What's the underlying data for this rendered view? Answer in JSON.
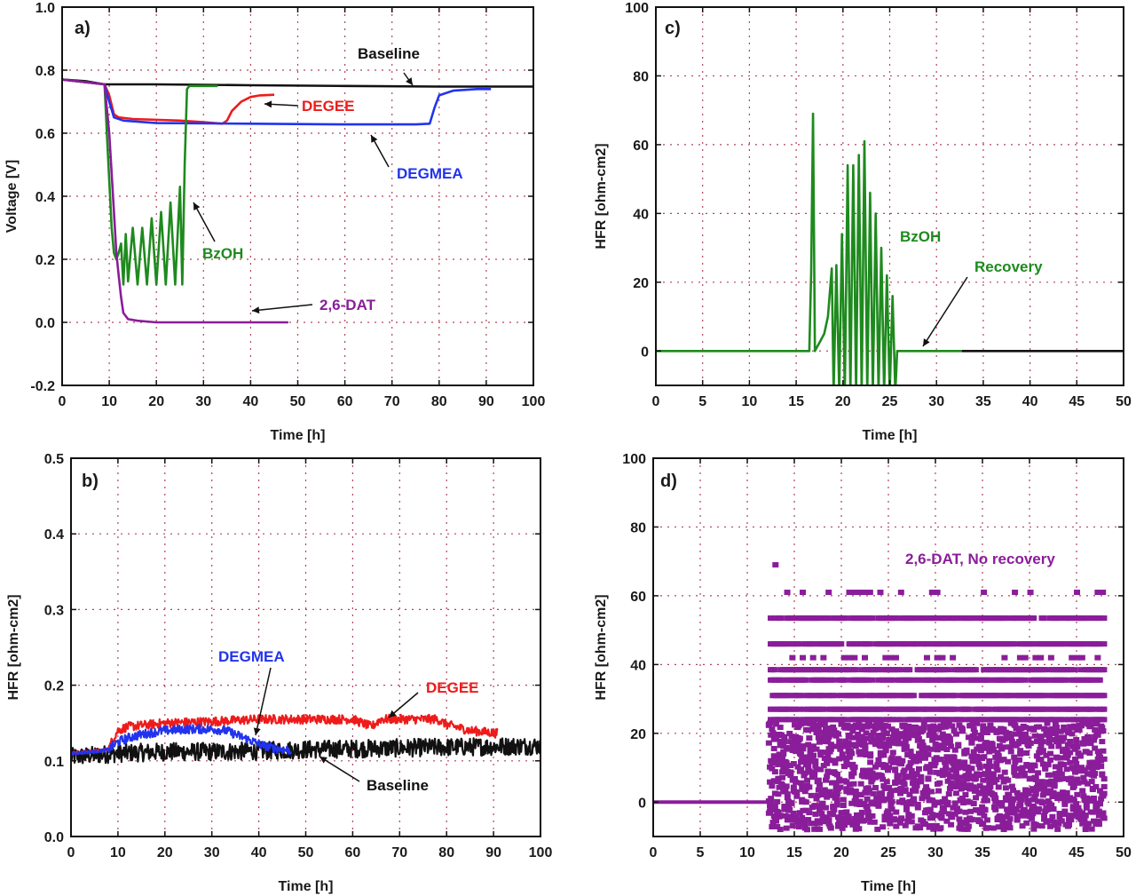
{
  "colors": {
    "baseline": "#111111",
    "degee": "#ee1b1b",
    "degmea": "#2233ee",
    "bzoh": "#1e8a1e",
    "dat": "#8a1d9a",
    "grid": "#b0445a"
  },
  "chart_data": [
    {
      "type": "line",
      "panel_label": "a)",
      "xlabel": "Time [h]",
      "ylabel": "Voltage [V]",
      "xlim": [
        0,
        100
      ],
      "ylim": [
        -0.2,
        1.0
      ],
      "xticks": [
        "0",
        "10",
        "20",
        "30",
        "40",
        "50",
        "60",
        "70",
        "80",
        "90",
        "100"
      ],
      "yticks": [
        "-0.2",
        "0.0",
        "0.2",
        "0.4",
        "0.6",
        "0.8",
        "1.0"
      ],
      "grid": true,
      "series": [
        {
          "name": "Baseline",
          "color_key": "baseline",
          "x": [
            0,
            5,
            9,
            20,
            40,
            60,
            80,
            100
          ],
          "y": [
            0.77,
            0.765,
            0.755,
            0.755,
            0.752,
            0.75,
            0.748,
            0.748
          ]
        },
        {
          "name": "DEGEE",
          "color_key": "degee",
          "x": [
            0,
            9,
            10,
            11,
            12,
            15,
            25,
            30,
            34,
            35,
            36,
            38,
            40,
            42,
            45
          ],
          "y": [
            0.77,
            0.755,
            0.72,
            0.66,
            0.65,
            0.645,
            0.64,
            0.635,
            0.63,
            0.64,
            0.67,
            0.7,
            0.715,
            0.72,
            0.722
          ]
        },
        {
          "name": "DEGMEA",
          "color_key": "degmea",
          "x": [
            0,
            9,
            10,
            11,
            13,
            20,
            40,
            60,
            75,
            78,
            79,
            80,
            83,
            88,
            91
          ],
          "y": [
            0.77,
            0.755,
            0.7,
            0.65,
            0.64,
            0.632,
            0.63,
            0.628,
            0.628,
            0.63,
            0.68,
            0.72,
            0.735,
            0.74,
            0.74
          ]
        },
        {
          "name": "BzOH",
          "color_key": "bzoh",
          "x": [
            0,
            9,
            9.5,
            10,
            10.5,
            11,
            11.5,
            12,
            12.5,
            13,
            13.5,
            14,
            15,
            16,
            17,
            18,
            19,
            20,
            21,
            22,
            23,
            24,
            25,
            25.5,
            26,
            26.5,
            27,
            28,
            30,
            33
          ],
          "y": [
            0.77,
            0.755,
            0.6,
            0.45,
            0.3,
            0.22,
            0.2,
            0.22,
            0.25,
            0.12,
            0.28,
            0.13,
            0.3,
            0.12,
            0.3,
            0.12,
            0.33,
            0.12,
            0.35,
            0.12,
            0.38,
            0.12,
            0.43,
            0.12,
            0.5,
            0.74,
            0.75,
            0.75,
            0.75,
            0.75
          ]
        },
        {
          "name": "2,6-DAT",
          "color_key": "dat",
          "x": [
            0,
            9,
            10,
            11,
            11.5,
            12,
            12.5,
            13,
            14,
            16,
            20,
            30,
            40,
            48
          ],
          "y": [
            0.77,
            0.755,
            0.6,
            0.35,
            0.22,
            0.15,
            0.08,
            0.03,
            0.01,
            0.005,
            0.0,
            0.0,
            0.0,
            0.0
          ]
        }
      ],
      "annotations": [
        {
          "text": "Baseline",
          "color_key": "baseline"
        },
        {
          "text": "DEGEE",
          "color_key": "degee"
        },
        {
          "text": "DEGMEA",
          "color_key": "degmea"
        },
        {
          "text": "BzOH",
          "color_key": "bzoh"
        },
        {
          "text": "2,6-DAT",
          "color_key": "dat"
        }
      ]
    },
    {
      "type": "line",
      "panel_label": "b)",
      "xlabel": "Time [h]",
      "ylabel": "HFR [ohm-cm2]",
      "xlim": [
        0,
        100
      ],
      "ylim": [
        0.0,
        0.5
      ],
      "xticks": [
        "0",
        "10",
        "20",
        "30",
        "40",
        "50",
        "60",
        "70",
        "80",
        "90",
        "100"
      ],
      "yticks": [
        "0.0",
        "0.1",
        "0.2",
        "0.3",
        "0.4",
        "0.5"
      ],
      "grid": true,
      "series": [
        {
          "name": "Baseline",
          "color_key": "baseline",
          "x": [
            0,
            10,
            20,
            30,
            40,
            50,
            60,
            70,
            80,
            90,
            100
          ],
          "y": [
            0.105,
            0.11,
            0.112,
            0.112,
            0.113,
            0.115,
            0.116,
            0.117,
            0.118,
            0.119,
            0.12
          ]
        },
        {
          "name": "DEGEE",
          "color_key": "degee",
          "x": [
            0,
            8,
            9,
            10,
            12,
            20,
            30,
            40,
            50,
            60,
            62,
            64,
            66,
            70,
            78,
            80,
            85,
            90,
            91
          ],
          "y": [
            0.11,
            0.115,
            0.13,
            0.14,
            0.145,
            0.15,
            0.152,
            0.155,
            0.155,
            0.155,
            0.15,
            0.145,
            0.155,
            0.155,
            0.155,
            0.148,
            0.14,
            0.137,
            0.136
          ]
        },
        {
          "name": "DEGMEA",
          "color_key": "degmea",
          "x": [
            0,
            5,
            8,
            9,
            10,
            12,
            15,
            20,
            25,
            30,
            33,
            35,
            37,
            39,
            41,
            43,
            45,
            47
          ],
          "y": [
            0.11,
            0.112,
            0.115,
            0.12,
            0.125,
            0.13,
            0.135,
            0.14,
            0.142,
            0.142,
            0.14,
            0.135,
            0.13,
            0.125,
            0.12,
            0.117,
            0.115,
            0.114
          ]
        }
      ],
      "annotations": [
        {
          "text": "DEGMEA",
          "color_key": "degmea"
        },
        {
          "text": "DEGEE",
          "color_key": "degee"
        },
        {
          "text": "Baseline",
          "color_key": "baseline"
        }
      ]
    },
    {
      "type": "line",
      "panel_label": "c)",
      "xlabel": "Time [h]",
      "ylabel": "HFR [ohm-cm2]",
      "xlim": [
        0,
        50
      ],
      "ylim": [
        -10,
        100
      ],
      "xticks": [
        "0",
        "5",
        "10",
        "15",
        "20",
        "25",
        "30",
        "35",
        "40",
        "45",
        "50"
      ],
      "yticks": [
        "0",
        "20",
        "40",
        "60",
        "80",
        "100"
      ],
      "grid": true,
      "series": [
        {
          "name": "BzOH",
          "color_key": "bzoh",
          "x": [
            0,
            16.4,
            16.6,
            16.8,
            17.0,
            17.2,
            17.6,
            18.0,
            18.4,
            18.8,
            19.0,
            19.3,
            19.6,
            19.9,
            20.2,
            20.5,
            20.8,
            21.1,
            21.4,
            21.7,
            22.0,
            22.3,
            22.6,
            22.9,
            23.2,
            23.5,
            23.8,
            24.1,
            24.4,
            24.7,
            25.0,
            25.3,
            25.6,
            25.8,
            26.0,
            28.0,
            32.7
          ],
          "y": [
            0,
            0,
            23,
            69,
            0,
            1,
            3,
            5,
            10,
            24,
            -12,
            25,
            -12,
            34,
            -12,
            54,
            -12,
            54,
            -12,
            57,
            -12,
            61,
            -12,
            46,
            -12,
            40,
            -12,
            30,
            -12,
            22,
            -12,
            16,
            -12,
            0,
            0,
            0,
            0
          ]
        },
        {
          "name": "Baseline",
          "color_key": "baseline",
          "x": [
            32.7,
            50
          ],
          "y": [
            0,
            0
          ]
        }
      ],
      "annotations": [
        {
          "text": "BzOH",
          "color_key": "bzoh"
        },
        {
          "text": "Recovery",
          "color_key": "bzoh"
        }
      ]
    },
    {
      "type": "scatter",
      "panel_label": "d)",
      "xlabel": "Time [h]",
      "ylabel": "HFR [ohm-cm2]",
      "xlim": [
        0,
        50
      ],
      "ylim": [
        -10,
        100
      ],
      "xticks": [
        "0",
        "5",
        "10",
        "15",
        "20",
        "25",
        "30",
        "35",
        "40",
        "45",
        "50"
      ],
      "yticks": [
        "0",
        "20",
        "40",
        "60",
        "80",
        "100"
      ],
      "grid": true,
      "series": [
        {
          "name": "2,6-DAT",
          "color_key": "dat",
          "x_range": [
            0,
            48
          ],
          "baseline_until": 12.3,
          "levels": [
            53.5,
            46.0,
            38.5,
            35.5,
            31.0,
            27.0,
            24.0
          ],
          "sparse_levels": [
            61.0,
            42.0
          ],
          "outliers": [
            [
              13.0,
              69.0
            ]
          ],
          "noise_band": [
            -8,
            23
          ]
        }
      ],
      "annotations": [
        {
          "text": "2,6-DAT, No recovery",
          "color_key": "dat"
        }
      ]
    }
  ]
}
